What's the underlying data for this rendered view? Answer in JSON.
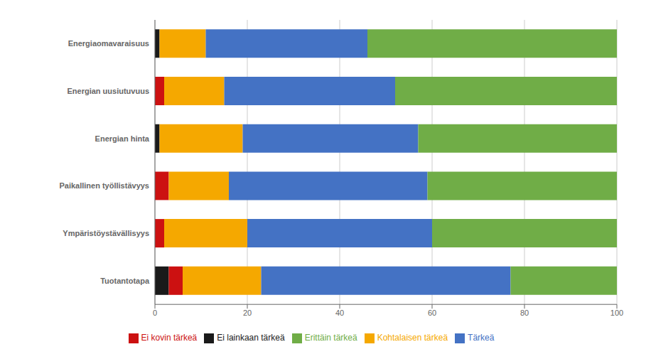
{
  "chart_data": {
    "type": "bar",
    "orientation": "horizontal",
    "stacked": true,
    "categories": [
      "Energiaomavaraisuus",
      "Energian uusiutuvuus",
      "Energian hinta",
      "Paikallinen työllistävyys",
      "Ympäristöystävällisyys",
      "Tuotantotapa"
    ],
    "series": [
      {
        "name": "Ei lainkaan tärkeä",
        "color": "#1a1a1a",
        "values": [
          1,
          0,
          1,
          0,
          0,
          3
        ]
      },
      {
        "name": "Ei kovin tärkeä",
        "color": "#cc1111",
        "values": [
          0,
          2,
          0,
          3,
          2,
          3
        ]
      },
      {
        "name": "Kohtalaisen tärkeä",
        "color": "#f5a800",
        "values": [
          10,
          13,
          18,
          13,
          18,
          17
        ]
      },
      {
        "name": "Tärkeä",
        "color": "#4472c4",
        "values": [
          35,
          37,
          38,
          43,
          40,
          54
        ]
      },
      {
        "name": "Erittäin tärkeä",
        "color": "#70ad47",
        "values": [
          54,
          48,
          43,
          41,
          40,
          23
        ]
      }
    ],
    "xlim": [
      0,
      100
    ],
    "xticks": [
      0,
      20,
      40,
      60,
      80,
      100
    ],
    "grid": true,
    "legend": "bottom"
  }
}
